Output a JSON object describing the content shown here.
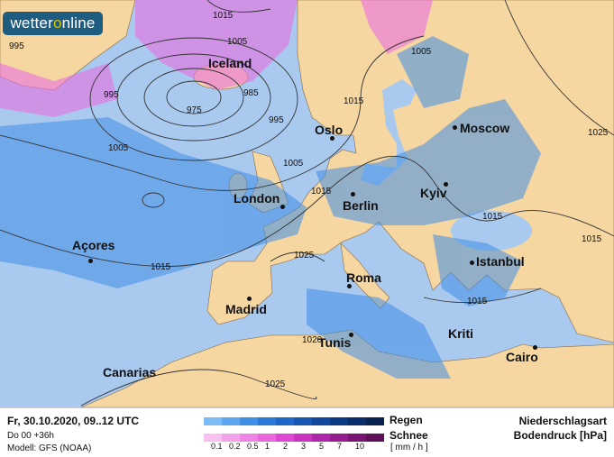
{
  "logo": {
    "text_a": "wetter",
    "text_o": "o",
    "text_b": "nline"
  },
  "cities": [
    "Iceland",
    "Oslo",
    "Moscow",
    "London",
    "Berlin",
    "Kyiv",
    "Açores",
    "Istanbul",
    "Madrid",
    "Roma",
    "Tunis",
    "Kriti",
    "Cairo",
    "Canarias"
  ],
  "isobar_labels": [
    "1015",
    "995",
    "1005",
    "995",
    "975",
    "985",
    "995",
    "1005",
    "1005",
    "1015",
    "1005",
    "1025",
    "1015",
    "1015",
    "1015",
    "1015",
    "1025",
    "1015",
    "1020",
    "1025"
  ],
  "footer": {
    "datetime": "Fr, 30.10.2020, 09..12 UTC",
    "run": "Do 00 +36h",
    "model": "Modell: GFS (NOAA)",
    "rain_label": "Regen",
    "snow_label": "Schnee",
    "unit": "[ mm / h ]",
    "title1": "Niederschlagsart",
    "title2": "Bodendruck [hPa]",
    "ticks": [
      "0.1",
      "0.2",
      "0.5",
      "1",
      "2",
      "3",
      "5",
      "7",
      "10"
    ],
    "rain_colors": [
      "#7dbbf5",
      "#5aa6f0",
      "#3f8ee6",
      "#2a7ad9",
      "#1d68c8",
      "#1557b3",
      "#10489d",
      "#0c3a85",
      "#0a2d6c",
      "#08244f"
    ],
    "snow_colors": [
      "#f7c0ef",
      "#f3a3ea",
      "#ef84e4",
      "#eb66dd",
      "#e048d3",
      "#c933c0",
      "#b026a8",
      "#951d8f",
      "#781673",
      "#5d1059"
    ]
  },
  "colors": {
    "sea": "#a9c9ef",
    "land": "#f6d7a2",
    "rain": "#3f8ee6",
    "snow": "#ea6fe0"
  }
}
